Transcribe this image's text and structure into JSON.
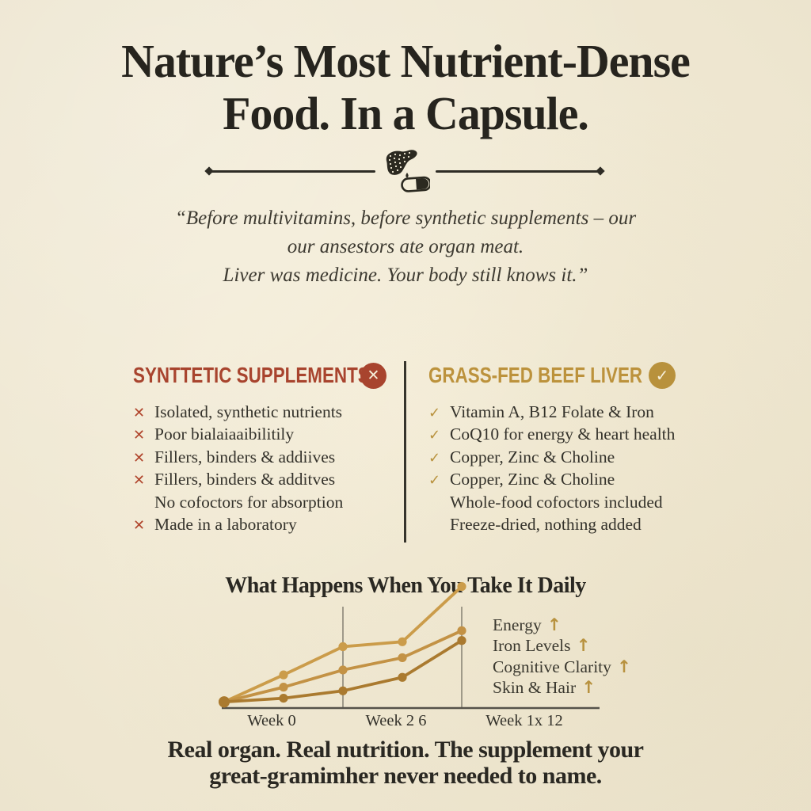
{
  "headline": {
    "lines": [
      "Nature’s Most Nutrient-Dense",
      "Food. In a Capsule."
    ]
  },
  "quote": {
    "lines": [
      "“Before multivitamins, before synthetic supplements – our",
      "our ansestors ate organ meat.",
      "Liver was medicine. Your body still knows it.”"
    ]
  },
  "icons": {
    "x-mark": {
      "glyph": "✕",
      "color": "#b0452c"
    },
    "check-mark": {
      "glyph": "✓",
      "color": "#b8913c"
    }
  },
  "comparison": {
    "left": {
      "title": "SYNTTETIC SUPPLEMENTS",
      "badge_glyph": "✕",
      "badge_color": "#a8442e",
      "items": [
        {
          "icon": "x-mark",
          "text": "Isolated, synthetic nutrients"
        },
        {
          "icon": "x-mark",
          "text": "Poor bialaiaaibilitily"
        },
        {
          "icon": "x-mark",
          "text": "Fillers, binders & addiives"
        },
        {
          "icon": "x-mark",
          "text": "Fillers, binders & additves"
        },
        {
          "icon": null,
          "text": "No cofoctors for absorption"
        },
        {
          "icon": "x-mark",
          "text": "Made in a laboratory"
        }
      ]
    },
    "right": {
      "title": "GRASS-FED BEEF LIVER",
      "badge_glyph": "✓",
      "badge_color": "#b8913c",
      "items": [
        {
          "icon": "check-mark",
          "text": "Vitamin A, B12 Folate & Iron"
        },
        {
          "icon": "check-mark",
          "text": "CoQ10 for energy & heart health"
        },
        {
          "icon": "check-mark",
          "text": "Copper, Zinc & Choline"
        },
        {
          "icon": "check-mark",
          "text": "Copper, Zinc & Choline"
        },
        {
          "icon": null,
          "text": "Whole-food cofoctors included"
        },
        {
          "icon": null,
          "text": "Freeze-dried, nothing added"
        }
      ]
    }
  },
  "chart_data": {
    "type": "line",
    "title": "What Happens When You Take It Daily",
    "xlabel": "",
    "ylabel": "",
    "x_tick_labels": [
      "Week 0",
      "Week 2 6",
      "Week 1x 12"
    ],
    "ylim": [
      0,
      100
    ],
    "grid": "two vertical gridlines at 3rd and 5th data points, no y-axis",
    "legend_position": "right",
    "legend": [
      {
        "label": "Energy",
        "arrow": "↑"
      },
      {
        "label": "Iron Levels",
        "arrow": "↑"
      },
      {
        "label": "Cognitive Clarity",
        "arrow": "↑"
      },
      {
        "label": "Skin & Hair",
        "arrow": "↑"
      }
    ],
    "x": [
      0,
      1,
      2,
      3,
      4
    ],
    "series": [
      {
        "name": "top-line",
        "color": "#cb9c4a",
        "values": [
          5,
          27,
          50,
          54,
          99
        ]
      },
      {
        "name": "middle-line",
        "color": "#c39245",
        "values": [
          5,
          17,
          31,
          41,
          63
        ]
      },
      {
        "name": "bottom-line",
        "color": "#aa7a2f",
        "values": [
          5,
          8,
          14,
          25,
          55
        ]
      }
    ]
  },
  "footer": {
    "lines": [
      "Real organ. Real nutrition. The supplement your",
      "great-gramimher never needed to name."
    ]
  },
  "colors": {
    "background": "#f5eed9",
    "ink": "#2a2822",
    "body_text": "#35332c",
    "red_accent": "#a8442e",
    "gold_accent": "#bc923c",
    "axis": "#55524a",
    "gridline": "#8b8678"
  }
}
